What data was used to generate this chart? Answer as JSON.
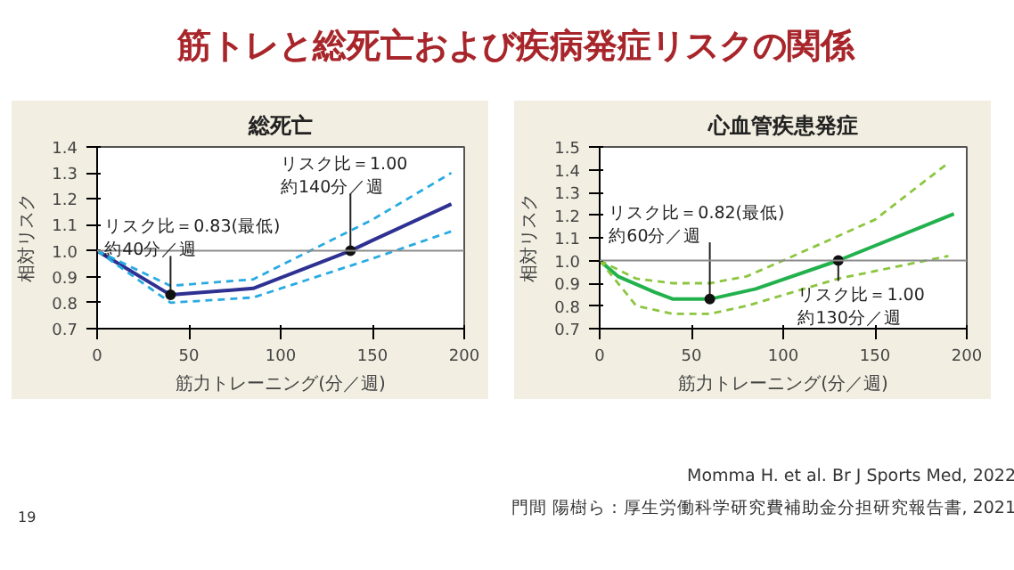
{
  "chart_data": [
    {
      "type": "line",
      "title": "総死亡",
      "xlabel": "筋力トレーニング(分／週)",
      "ylabel": "相対リスク",
      "xlim": [
        0,
        200
      ],
      "ylim": [
        0.7,
        1.4
      ],
      "xticks": [
        0,
        50,
        100,
        150,
        200
      ],
      "yticks": [
        0.7,
        0.8,
        0.9,
        {
          "value": 1.0,
          "label": "1.0"
        },
        1.1,
        1.2,
        1.3,
        1.4
      ],
      "grid": false,
      "ref_lines": [
        {
          "axis": "y",
          "value": 1.0,
          "color": "#8c8c8c"
        }
      ],
      "series": [
        {
          "color": "#2e3192",
          "line_style": "solid",
          "x": [
            0,
            40,
            85,
            138,
            150,
            193
          ],
          "values": [
            1.0,
            0.83,
            0.855,
            1.0,
            1.04,
            1.18
          ]
        },
        {
          "color": "#29abe2",
          "line_style": "dashed",
          "x": [
            0,
            40,
            85,
            150,
            193
          ],
          "values": [
            1.0,
            0.865,
            0.89,
            1.12,
            1.3
          ]
        },
        {
          "color": "#29abe2",
          "line_style": "dashed",
          "x": [
            0,
            40,
            85,
            150,
            193
          ],
          "values": [
            1.0,
            0.8,
            0.82,
            0.97,
            1.075
          ]
        }
      ],
      "annotations": [
        "筋トレと総死亡および疾病発症リスクの関係",
        "19",
        {
          "text": "リスク比＝0.83(最低)\n約40分／週",
          "x": 40,
          "y": 0.83
        },
        {
          "text": "リスク比＝1.00\n約140分／週",
          "x": 138,
          "y": 1.0
        }
      ]
    },
    {
      "type": "line",
      "title": "心血管疾患発症",
      "xlabel": "筋力トレーニング(分／週)",
      "ylabel": "相対リスク",
      "xlim": [
        0,
        200
      ],
      "ylim": [
        0.7,
        1.5
      ],
      "xticks": [
        0,
        50,
        100,
        150,
        200
      ],
      "yticks": [
        0.7,
        0.8,
        0.9,
        {
          "value": 1.0,
          "label": "1.0"
        },
        1.1,
        1.2,
        1.3,
        1.4,
        1.5
      ],
      "grid": false,
      "ref_lines": [
        {
          "axis": "y",
          "value": 1.0,
          "color": "#8c8c8c"
        }
      ],
      "series": [
        {
          "color": "#22b14c",
          "line_style": "solid",
          "x": [
            0,
            10,
            30,
            40,
            60,
            85,
            130,
            193
          ],
          "values": [
            1.0,
            0.93,
            0.86,
            0.83,
            0.83,
            0.875,
            1.0,
            1.205
          ]
        },
        {
          "color": "#8cc63f",
          "line_style": "dashed",
          "x": [
            0,
            20,
            40,
            60,
            80,
            100,
            150,
            190
          ],
          "values": [
            1.0,
            0.92,
            0.9,
            0.9,
            0.93,
            1.0,
            1.18,
            1.43
          ]
        },
        {
          "color": "#8cc63f",
          "line_style": "dashed",
          "x": [
            0,
            20,
            40,
            60,
            80,
            130,
            190
          ],
          "values": [
            1.0,
            0.8,
            0.765,
            0.765,
            0.8,
            0.92,
            1.02
          ]
        }
      ],
      "annotations": [
        "Momma H. et al. Br J Sports Med, 2022",
        "門間 陽樹ら：厚生労働科学研究費補助金分担研究報告書, 2021",
        {
          "text": "リスク比＝0.82(最低)\n約60分／週",
          "x": 60,
          "y": 0.83
        },
        {
          "text": "リスク比＝1.00\n約130分／週",
          "x": 130,
          "y": 1.0
        }
      ]
    }
  ]
}
